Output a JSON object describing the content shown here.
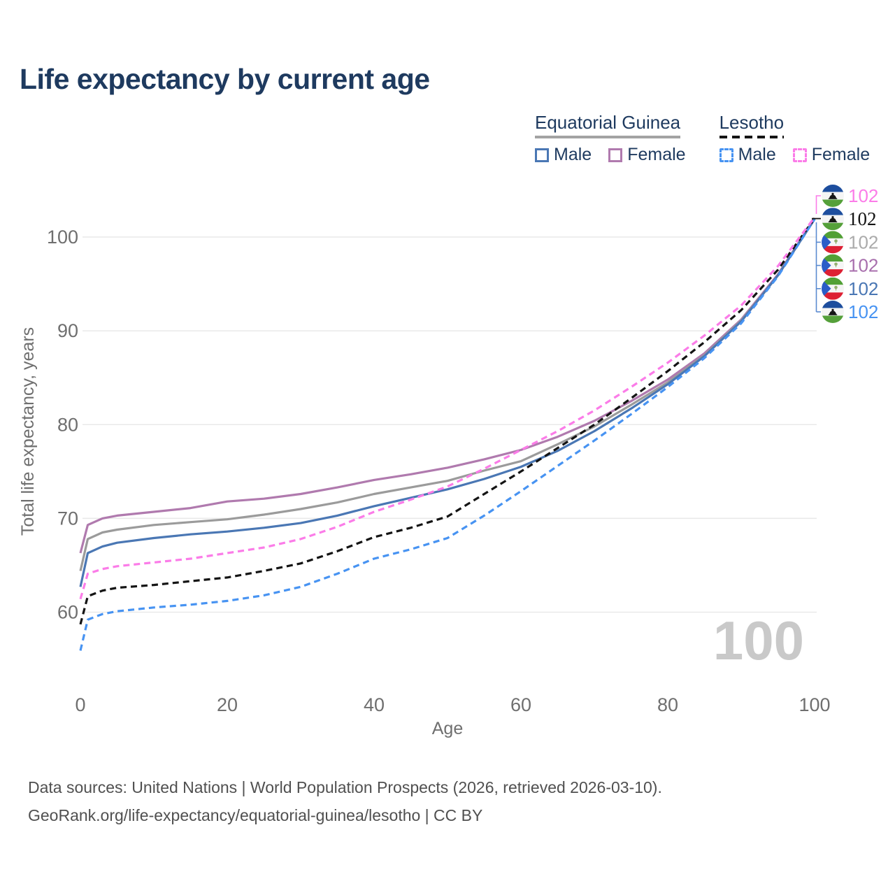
{
  "title": "Life expectancy by current age",
  "legend": {
    "groups": [
      {
        "country": "Equatorial Guinea",
        "line_style": "solid",
        "underline_color": "#a3a3a3",
        "items": [
          {
            "label": "Male",
            "color": "#4a77b4"
          },
          {
            "label": "Female",
            "color": "#b07aae"
          }
        ]
      },
      {
        "country": "Lesotho",
        "line_style": "dashed",
        "underline_color": "#141414",
        "items": [
          {
            "label": "Male",
            "color": "#4793f2"
          },
          {
            "label": "Female",
            "color": "#fb7ce8"
          }
        ]
      }
    ]
  },
  "chart_data": {
    "type": "line",
    "title": "Life expectancy by current age",
    "xlabel": "Age",
    "ylabel": "Total life expectancy, years",
    "xticks": [
      0,
      20,
      40,
      60,
      80,
      100
    ],
    "yticks": [
      60,
      70,
      80,
      90,
      100
    ],
    "xlim": [
      0,
      100
    ],
    "ylim": [
      56,
      104
    ],
    "grid": "horizontal",
    "legend_position": "top-right",
    "x": [
      0,
      1,
      3,
      5,
      10,
      15,
      20,
      25,
      30,
      35,
      40,
      45,
      50,
      55,
      60,
      65,
      70,
      75,
      80,
      85,
      90,
      95,
      100
    ],
    "series": [
      {
        "name": "Equatorial Guinea Female",
        "country": "Equatorial Guinea",
        "sex": "Female",
        "color": "#b07aae",
        "dashed": false,
        "values": [
          66.3,
          69.3,
          70.0,
          70.3,
          70.7,
          71.1,
          71.8,
          72.1,
          72.6,
          73.3,
          74.1,
          74.7,
          75.4,
          76.3,
          77.3,
          78.7,
          80.4,
          82.5,
          84.8,
          87.6,
          91.2,
          96.0,
          102.0
        ]
      },
      {
        "name": "Equatorial Guinea Total",
        "country": "Equatorial Guinea",
        "sex": "Total",
        "color": "#9b9b9b",
        "dashed": false,
        "values": [
          64.4,
          67.8,
          68.5,
          68.8,
          69.3,
          69.6,
          69.9,
          70.4,
          71.0,
          71.7,
          72.6,
          73.3,
          74.0,
          75.1,
          76.1,
          77.9,
          79.8,
          82.1,
          84.5,
          87.4,
          91.1,
          95.9,
          101.95
        ]
      },
      {
        "name": "Equatorial Guinea Male",
        "country": "Equatorial Guinea",
        "sex": "Male",
        "color": "#4a77b4",
        "dashed": false,
        "values": [
          62.7,
          66.3,
          67.0,
          67.4,
          67.9,
          68.3,
          68.6,
          69.0,
          69.5,
          70.3,
          71.3,
          72.2,
          73.1,
          74.2,
          75.5,
          77.2,
          79.3,
          81.7,
          84.3,
          87.3,
          91.0,
          95.9,
          101.9
        ]
      },
      {
        "name": "Lesotho Total",
        "country": "Lesotho",
        "sex": "Total",
        "color": "#141414",
        "dashed": true,
        "values": [
          58.7,
          61.7,
          62.3,
          62.6,
          62.9,
          63.3,
          63.7,
          64.4,
          65.2,
          66.5,
          68.0,
          69.0,
          70.2,
          72.6,
          75.0,
          77.5,
          80.0,
          82.8,
          85.7,
          88.8,
          92.2,
          96.5,
          102.0
        ]
      },
      {
        "name": "Lesotho Male",
        "country": "Lesotho",
        "sex": "Male",
        "color": "#4793f2",
        "dashed": true,
        "values": [
          55.9,
          59.2,
          59.8,
          60.1,
          60.5,
          60.8,
          61.2,
          61.8,
          62.7,
          64.1,
          65.7,
          66.7,
          67.9,
          70.3,
          72.9,
          75.6,
          78.3,
          81.1,
          84.0,
          87.1,
          90.8,
          95.8,
          101.9
        ]
      },
      {
        "name": "Lesotho Female",
        "country": "Lesotho",
        "sex": "Female",
        "color": "#fb7ce8",
        "dashed": true,
        "values": [
          61.4,
          64.1,
          64.6,
          64.9,
          65.3,
          65.7,
          66.3,
          66.9,
          67.8,
          69.1,
          70.7,
          72.0,
          73.4,
          75.3,
          77.3,
          79.3,
          81.5,
          84.0,
          86.6,
          89.5,
          92.7,
          96.9,
          102.1
        ]
      }
    ],
    "end_labels": [
      {
        "flag": "lesotho",
        "value": "102",
        "color": "#fb7ce8",
        "series": "Lesotho Female"
      },
      {
        "flag": "lesotho",
        "value": "102",
        "color": "#141414",
        "series": "Lesotho Total"
      },
      {
        "flag": "equatorial-guinea",
        "value": "102",
        "color": "#ababab",
        "series": "Equatorial Guinea Total"
      },
      {
        "flag": "equatorial-guinea",
        "value": "102",
        "color": "#a86fad",
        "series": "Equatorial Guinea Female"
      },
      {
        "flag": "equatorial-guinea",
        "value": "102",
        "color": "#4a77b4",
        "series": "Equatorial Guinea Male"
      },
      {
        "flag": "lesotho",
        "value": "102",
        "color": "#4793f2",
        "series": "Lesotho Male"
      }
    ]
  },
  "watermark": "100",
  "footer": {
    "line1": "Data sources: United Nations | World Population Prospects (2026, retrieved 2026-03-10).",
    "line2": "GeoRank.org/life-expectancy/equatorial-guinea/lesotho | CC BY"
  }
}
